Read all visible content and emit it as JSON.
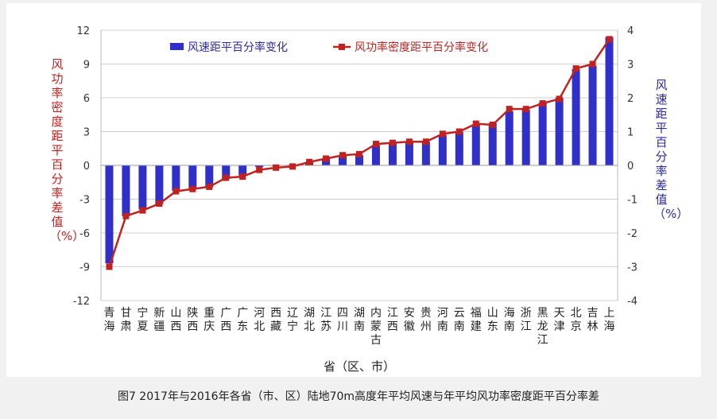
{
  "chart_data": {
    "type": "bar",
    "categories": [
      "青海",
      "甘肃",
      "宁夏",
      "新疆",
      "山西",
      "陕西",
      "重庆",
      "广西",
      "广东",
      "河北",
      "西藏",
      "辽宁",
      "湖北",
      "江苏",
      "四川",
      "湖南",
      "内蒙古",
      "江西",
      "安徽",
      "贵州",
      "河南",
      "云南",
      "福建",
      "山东",
      "海南",
      "浙江",
      "黑龙江",
      "天津",
      "北京",
      "吉林",
      "上海"
    ],
    "series": [
      {
        "name": "风速距平百分率变化",
        "type": "bar",
        "axis": "right",
        "color": "#3030c8",
        "values": [
          -2.9,
          -1.5,
          -1.3,
          -1.15,
          -0.75,
          -0.7,
          -0.65,
          -0.4,
          -0.3,
          -0.05,
          -0.02,
          0.02,
          0.1,
          0.2,
          0.3,
          0.3,
          0.6,
          0.65,
          0.7,
          0.7,
          0.9,
          1.0,
          1.2,
          1.25,
          1.6,
          1.65,
          1.85,
          2.0,
          2.85,
          2.95,
          3.8
        ]
      },
      {
        "name": "风功率密度距平百分率变化",
        "type": "line",
        "axis": "left",
        "color": "#c0221f",
        "values": [
          -9.0,
          -4.5,
          -4.0,
          -3.4,
          -2.3,
          -2.1,
          -1.9,
          -1.1,
          -1.0,
          -0.4,
          -0.2,
          -0.1,
          0.3,
          0.6,
          0.9,
          1.0,
          1.9,
          2.0,
          2.1,
          2.1,
          2.8,
          3.0,
          3.7,
          3.6,
          5.0,
          5.0,
          5.5,
          5.9,
          8.6,
          9.0,
          11.2
        ]
      }
    ],
    "xlabel": "省（区、市）",
    "ylabel_left": "风功率密度距平百分率差值（%）",
    "ylabel_right": "风速距平百分率差值（%）",
    "ylim_left": [
      -12,
      12
    ],
    "ylim_right": [
      -4,
      4
    ],
    "yticks_left": [
      "12",
      "9",
      "6",
      "3",
      "0",
      "-3",
      "-6",
      "-9",
      "-12"
    ],
    "yticks_right": [
      "4",
      "3",
      "2",
      "1",
      "0",
      "-1",
      "-2",
      "-3",
      "-4"
    ],
    "grid": true,
    "legend_position": "top",
    "caption": "图7  2017年与2016年各省（市、区）陆地70m高度年平均风速与年平均风功率密度距平百分率差"
  }
}
